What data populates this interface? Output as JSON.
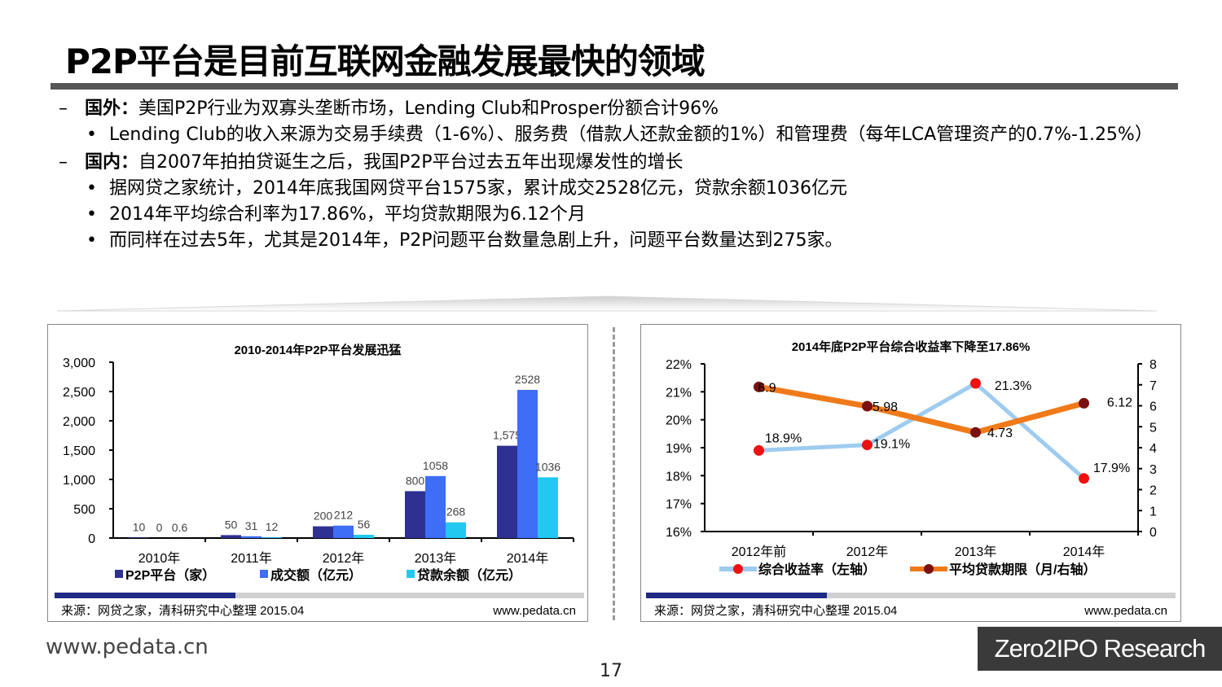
{
  "title": "P2P平台是目前互联网金融发展最快的领域",
  "bullets": [
    {
      "level": 1,
      "label": "国外：",
      "text": "美国P2P行业为双寡头垄断市场，Lending Club和Prosper份额合计96%"
    },
    {
      "level": 2,
      "text": "Lending Club的收入来源为交易手续费（1-6%）、服务费（借款人还款金额的1%）和管理费（每年LCA管理资产的0.7%-1.25%）"
    },
    {
      "level": 1,
      "label": "国内：",
      "text": "自2007年拍拍贷诞生之后，我国P2P平台过去五年出现爆发性的增长"
    },
    {
      "level": 2,
      "text": "据网贷之家统计，2014年底我国网贷平台1575家，累计成交2528亿元，贷款余额1036亿元"
    },
    {
      "level": 2,
      "text": "2014年平均综合利率为17.86%，平均贷款期限为6.12个月"
    },
    {
      "level": 2,
      "text": "而同样在过去5年，尤其是2014年，P2P问题平台数量急剧上升，问题平台数量达到275家。"
    }
  ],
  "chart_data": [
    {
      "type": "bar",
      "title": "2010-2014年P2P平台发展迅猛",
      "categories": [
        "2010年",
        "2011年",
        "2012年",
        "2013年",
        "2014年"
      ],
      "ylim": [
        0,
        3000
      ],
      "yticks": [
        "3,000",
        "2,500",
        "2,000",
        "1,500",
        "1,000",
        "500",
        "0"
      ],
      "series": [
        {
          "name": "P2P平台（家）",
          "values": [
            10,
            50,
            200,
            800,
            1575
          ],
          "labels": [
            "10",
            "50",
            "200",
            "800",
            "1,575"
          ],
          "color": "#2e3192"
        },
        {
          "name": "成交额（亿元）",
          "values": [
            0,
            31,
            212,
            1058,
            2528
          ],
          "labels": [
            "0",
            "31",
            "212",
            "1058",
            "2528"
          ],
          "color": "#3d6ef5"
        },
        {
          "name": "贷款余额（亿元）",
          "values": [
            0.6,
            12,
            56,
            268,
            1036
          ],
          "labels": [
            "0.6",
            "12",
            "56",
            "268",
            "1036"
          ],
          "color": "#22c8f0"
        }
      ],
      "source": "来源：网贷之家，清科研究中心整理 2015.04",
      "url": "www.pedata.cn"
    },
    {
      "type": "line",
      "title": "2014年底P2P平台综合收益率下降至17.86%",
      "categories": [
        "2012年前",
        "2012年",
        "2013年",
        "2014年"
      ],
      "ylim_left": [
        16,
        22
      ],
      "yticks_left": [
        "22%",
        "21%",
        "20%",
        "19%",
        "18%",
        "17%",
        "16%"
      ],
      "ylim_right": [
        0,
        8
      ],
      "yticks_right": [
        "8",
        "7",
        "6",
        "5",
        "4",
        "3",
        "2",
        "1",
        "0"
      ],
      "series": [
        {
          "name": "综合收益率（左轴）",
          "axis": "left",
          "values": [
            18.9,
            19.1,
            21.3,
            17.9
          ],
          "labels": [
            "18.9%",
            "19.1%",
            "21.3%",
            "17.9%"
          ],
          "line_color": "#9ecbf0",
          "marker_color": "#ee1111"
        },
        {
          "name": "平均贷款期限（月/右轴）",
          "axis": "right",
          "values": [
            6.9,
            5.98,
            4.73,
            6.12
          ],
          "labels": [
            "6.9",
            "5.98",
            "4.73",
            "6.12"
          ],
          "line_color": "#f07a1a",
          "marker_color": "#7a1010"
        }
      ],
      "source": "来源：网贷之家，清科研究中心整理 2015.04",
      "url": "www.pedata.cn"
    }
  ],
  "footer": {
    "url": "www.pedata.cn",
    "page": "17",
    "brand": "Zero2IPO Research"
  }
}
